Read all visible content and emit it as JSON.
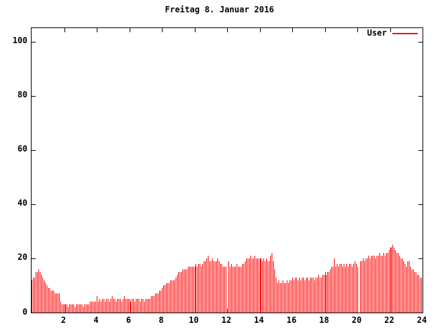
{
  "title": "Freitag 8. Januar 2016",
  "legend": {
    "label": "User",
    "color": "#ff0000"
  },
  "colors": {
    "background": "#ffffff",
    "axis": "#000000",
    "text": "#000000",
    "bars": "#ff0000"
  },
  "chart_data": {
    "type": "bar",
    "title": "Freitag 8. Januar 2016",
    "xlabel": "",
    "ylabel": "",
    "x_unit": "hour of day",
    "interval_minutes": 5,
    "xlim": [
      0,
      24
    ],
    "ylim": [
      0,
      105
    ],
    "xticks": [
      2,
      4,
      6,
      8,
      10,
      12,
      14,
      16,
      18,
      20,
      22,
      24
    ],
    "yticks": [
      0,
      20,
      40,
      60,
      80,
      100
    ],
    "grid": false,
    "legend_position": "top-right",
    "series": [
      {
        "name": "User",
        "color": "#ff0000",
        "values": [
          12,
          13,
          13,
          15,
          15,
          16,
          15,
          14,
          13,
          12,
          11,
          10,
          9,
          9,
          8,
          8,
          8,
          7,
          7,
          7,
          7,
          4,
          3,
          3,
          3,
          3,
          3,
          2,
          3,
          3,
          3,
          3,
          2,
          3,
          3,
          3,
          3,
          3,
          2,
          3,
          3,
          3,
          3,
          4,
          4,
          4,
          4,
          4,
          6,
          4,
          5,
          4,
          5,
          5,
          4,
          5,
          5,
          4,
          5,
          6,
          5,
          5,
          4,
          5,
          5,
          5,
          4,
          5,
          6,
          5,
          5,
          5,
          5,
          4,
          5,
          5,
          4,
          5,
          5,
          5,
          4,
          5,
          5,
          4,
          5,
          5,
          5,
          5,
          6,
          6,
          6,
          7,
          7,
          7,
          8,
          8,
          9,
          10,
          10,
          11,
          11,
          11,
          12,
          12,
          12,
          12,
          13,
          14,
          15,
          15,
          15,
          16,
          16,
          16,
          16,
          17,
          17,
          17,
          17,
          17,
          17,
          18,
          17,
          18,
          18,
          17,
          18,
          19,
          19,
          20,
          21,
          19,
          19,
          20,
          19,
          19,
          19,
          20,
          19,
          18,
          18,
          17,
          17,
          17,
          null,
          19,
          17,
          18,
          17,
          17,
          17,
          18,
          17,
          17,
          17,
          18,
          18,
          19,
          20,
          20,
          20,
          21,
          20,
          20,
          21,
          20,
          20,
          20,
          20,
          20,
          19,
          20,
          19,
          20,
          19,
          19,
          21,
          22,
          19,
          16,
          13,
          11,
          12,
          11,
          11,
          12,
          11,
          11,
          12,
          11,
          12,
          12,
          13,
          12,
          13,
          13,
          12,
          13,
          12,
          13,
          13,
          12,
          13,
          13,
          12,
          13,
          13,
          13,
          12,
          13,
          13,
          14,
          13,
          13,
          14,
          14,
          15,
          14,
          15,
          15,
          16,
          17,
          17,
          20,
          17,
          18,
          17,
          18,
          18,
          17,
          18,
          17,
          18,
          17,
          18,
          18,
          17,
          18,
          19,
          18,
          17,
          null,
          19,
          19,
          20,
          19,
          20,
          20,
          21,
          20,
          21,
          21,
          21,
          20,
          21,
          21,
          22,
          21,
          21,
          22,
          21,
          22,
          22,
          23,
          24,
          24,
          25,
          24,
          23,
          22,
          22,
          21,
          20,
          20,
          19,
          18,
          17,
          19,
          19,
          17,
          16,
          16,
          15,
          15,
          14,
          14,
          13,
          13
        ]
      }
    ]
  }
}
